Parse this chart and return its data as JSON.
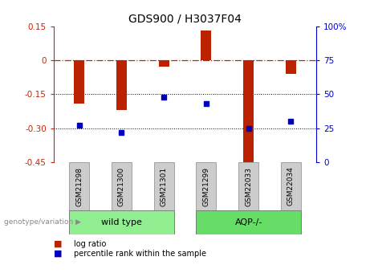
{
  "title": "GDS900 / H3037F04",
  "samples": [
    "GSM21298",
    "GSM21300",
    "GSM21301",
    "GSM21299",
    "GSM22033",
    "GSM22034"
  ],
  "log_ratio": [
    -0.19,
    -0.22,
    -0.03,
    0.13,
    -0.47,
    -0.06
  ],
  "percentile_rank": [
    27,
    22,
    48,
    43,
    25,
    30
  ],
  "groups": [
    {
      "label": "wild type",
      "indices": [
        0,
        1,
        2
      ],
      "color": "#90EE90"
    },
    {
      "label": "AQP-/-",
      "indices": [
        3,
        4,
        5
      ],
      "color": "#66DD66"
    }
  ],
  "bar_color": "#BB2200",
  "dot_color": "#0000BB",
  "ylim_left": [
    -0.45,
    0.15
  ],
  "ylim_right": [
    0,
    100
  ],
  "left_ticks": [
    0.15,
    0.0,
    -0.15,
    -0.3,
    -0.45
  ],
  "right_ticks": [
    100,
    75,
    50,
    25,
    0
  ],
  "dotted_lines": [
    -0.15,
    -0.3
  ],
  "bar_width": 0.25
}
